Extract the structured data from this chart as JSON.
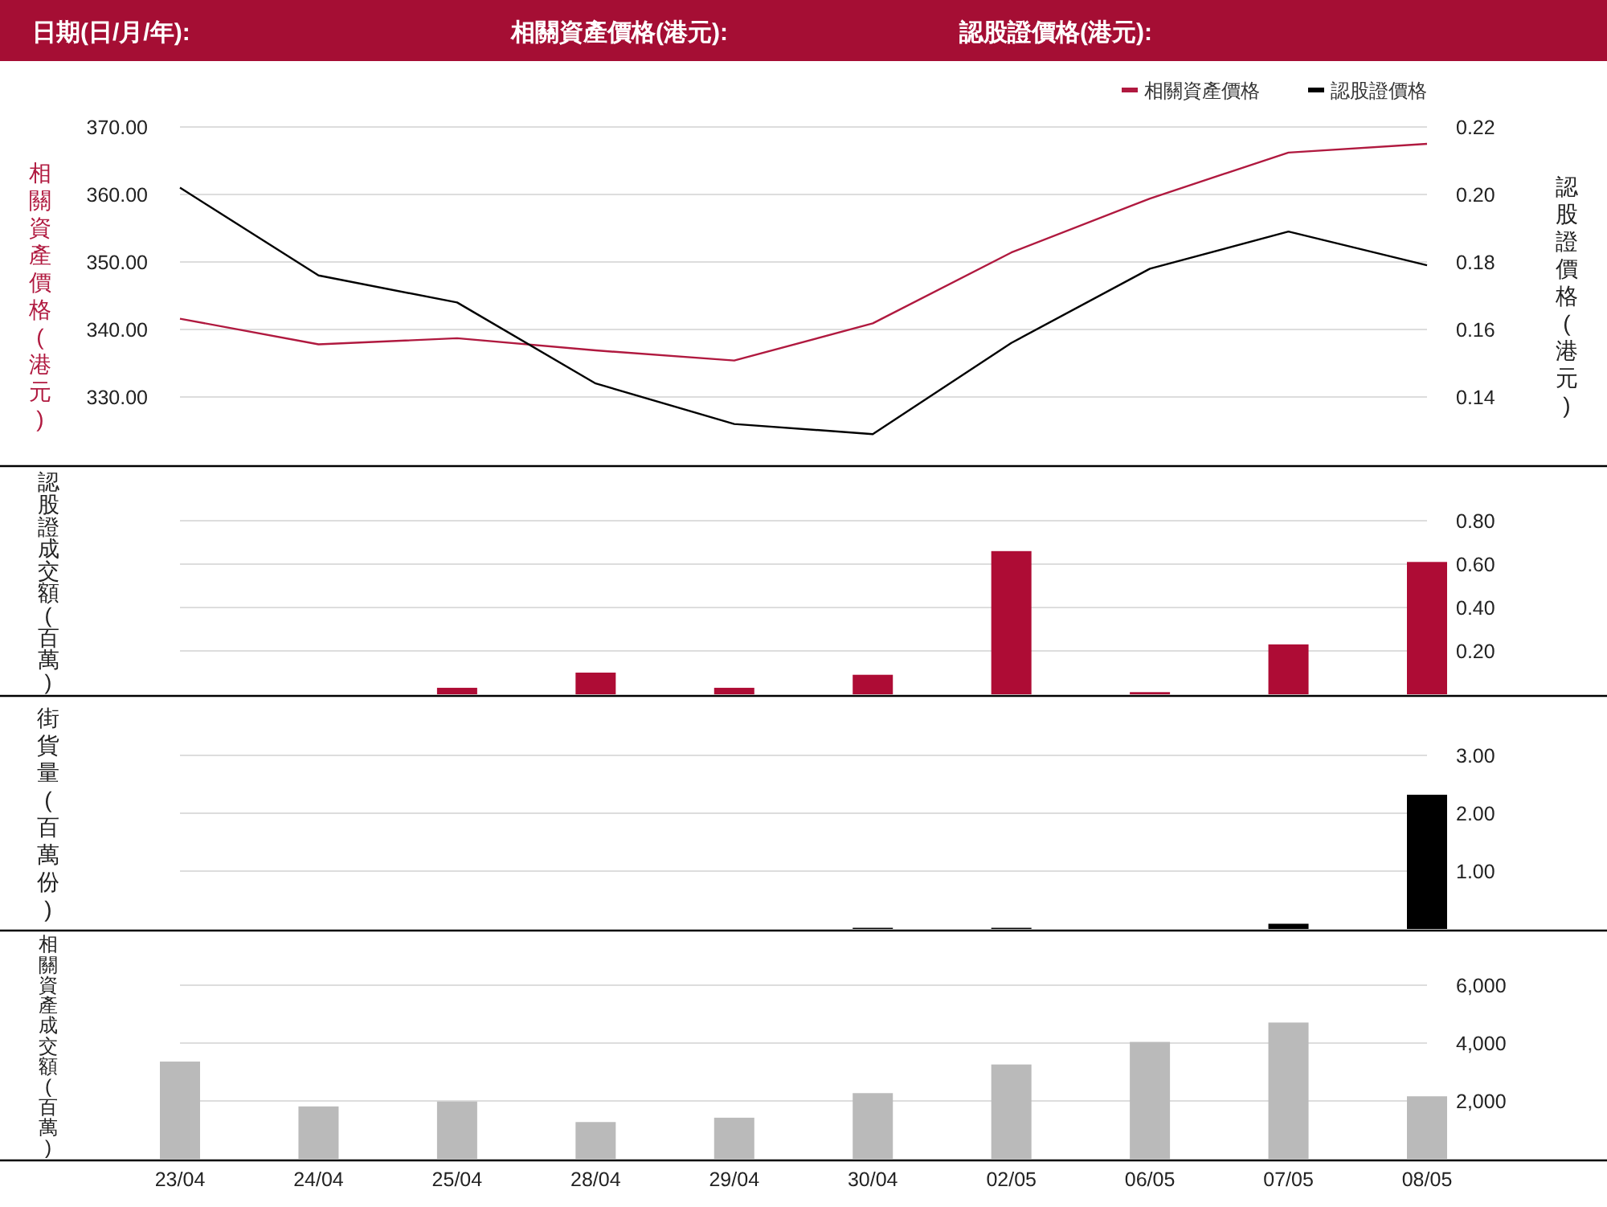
{
  "chart_data": [
    {
      "type": "other",
      "annotations": [
        "日期(日/月/年):",
        "相關資產價格(港元):",
        "認股證價格(港元):"
      ]
    },
    {
      "type": "line",
      "categories": [
        null,
        null,
        null,
        null,
        null,
        null,
        null,
        null,
        null,
        null
      ],
      "series": [
        {
          "name": "相關資產價格",
          "color": "#b0193f",
          "values": [
            341.6,
            337.8,
            338.7,
            336.9,
            335.4,
            340.9,
            351.4,
            359.4,
            366.2,
            367.5
          ]
        },
        {
          "name": "認股證價格",
          "color": "#000000",
          "axis": "y2",
          "values": [
            0.202,
            0.176,
            0.168,
            0.144,
            0.132,
            0.129,
            0.156,
            0.178,
            0.189,
            0.179
          ]
        }
      ],
      "ylabel": "相關資產價格(港元)",
      "y2label": "認股證價格(港元)",
      "ylim": [
        320,
        370
      ],
      "yticks": [
        {
          "value": 330,
          "label": "330.00"
        },
        {
          "value": 340,
          "label": "340.00"
        },
        {
          "value": 350,
          "label": "350.00"
        },
        {
          "value": 360,
          "label": "360.00"
        },
        {
          "value": 370,
          "label": "370.00"
        }
      ],
      "y2lim": [
        0.12,
        0.22
      ],
      "y2ticks": [
        {
          "value": 0.14,
          "label": "0.14"
        },
        {
          "value": 0.16,
          "label": "0.16"
        },
        {
          "value": 0.18,
          "label": "0.18"
        },
        {
          "value": 0.2,
          "label": "0.20"
        },
        {
          "value": 0.22,
          "label": "0.22"
        }
      ],
      "grid": "y",
      "legend": "top right",
      "tick_labels": "y"
    },
    {
      "type": "bar",
      "categories": [
        null,
        null,
        null,
        null,
        null,
        null,
        null,
        null,
        null,
        null
      ],
      "values": [
        0,
        0,
        0.03,
        0.1,
        0.03,
        0.09,
        0.66,
        0.01,
        0.23,
        0.61
      ],
      "color": "#ae0c35",
      "ylabel": "認股證成交額(百萬)",
      "ylim": [
        0,
        0.8
      ],
      "yticks": [
        {
          "value": 0.2,
          "label": "0.20"
        },
        {
          "value": 0.4,
          "label": "0.40"
        },
        {
          "value": 0.6,
          "label": "0.60"
        },
        {
          "value": 0.8,
          "label": "0.80"
        }
      ],
      "grid": "y",
      "tick_labels": "y"
    },
    {
      "type": "bar",
      "categories": [
        null,
        null,
        null,
        null,
        null,
        null,
        null,
        null,
        null,
        null
      ],
      "values": [
        0,
        0,
        0,
        0,
        0,
        0.02,
        0.02,
        0,
        0.09,
        2.32
      ],
      "color": "#000000",
      "ylabel": "街貨量(百萬份)",
      "ylim": [
        0,
        3
      ],
      "yticks": [
        {
          "value": 1,
          "label": "1.00"
        },
        {
          "value": 2,
          "label": "2.00"
        },
        {
          "value": 3,
          "label": "3.00"
        }
      ],
      "grid": "y",
      "tick_labels": "y"
    },
    {
      "type": "bar",
      "categories": [
        "23/04",
        "24/04",
        "25/04",
        "28/04",
        "29/04",
        "30/04",
        "02/05",
        "06/05",
        "07/05",
        "08/05"
      ],
      "values": [
        3360,
        1810,
        1980,
        1270,
        1420,
        2270,
        3260,
        4040,
        4710,
        2160
      ],
      "color": "#bababa",
      "ylabel": "相關資產成交額(百萬)",
      "ylim": [
        0,
        6000
      ],
      "yticks": [
        {
          "value": 2000,
          "label": "2,000"
        },
        {
          "value": 4000,
          "label": "4,000"
        },
        {
          "value": 6000,
          "label": "6,000"
        }
      ],
      "grid": "y"
    }
  ]
}
